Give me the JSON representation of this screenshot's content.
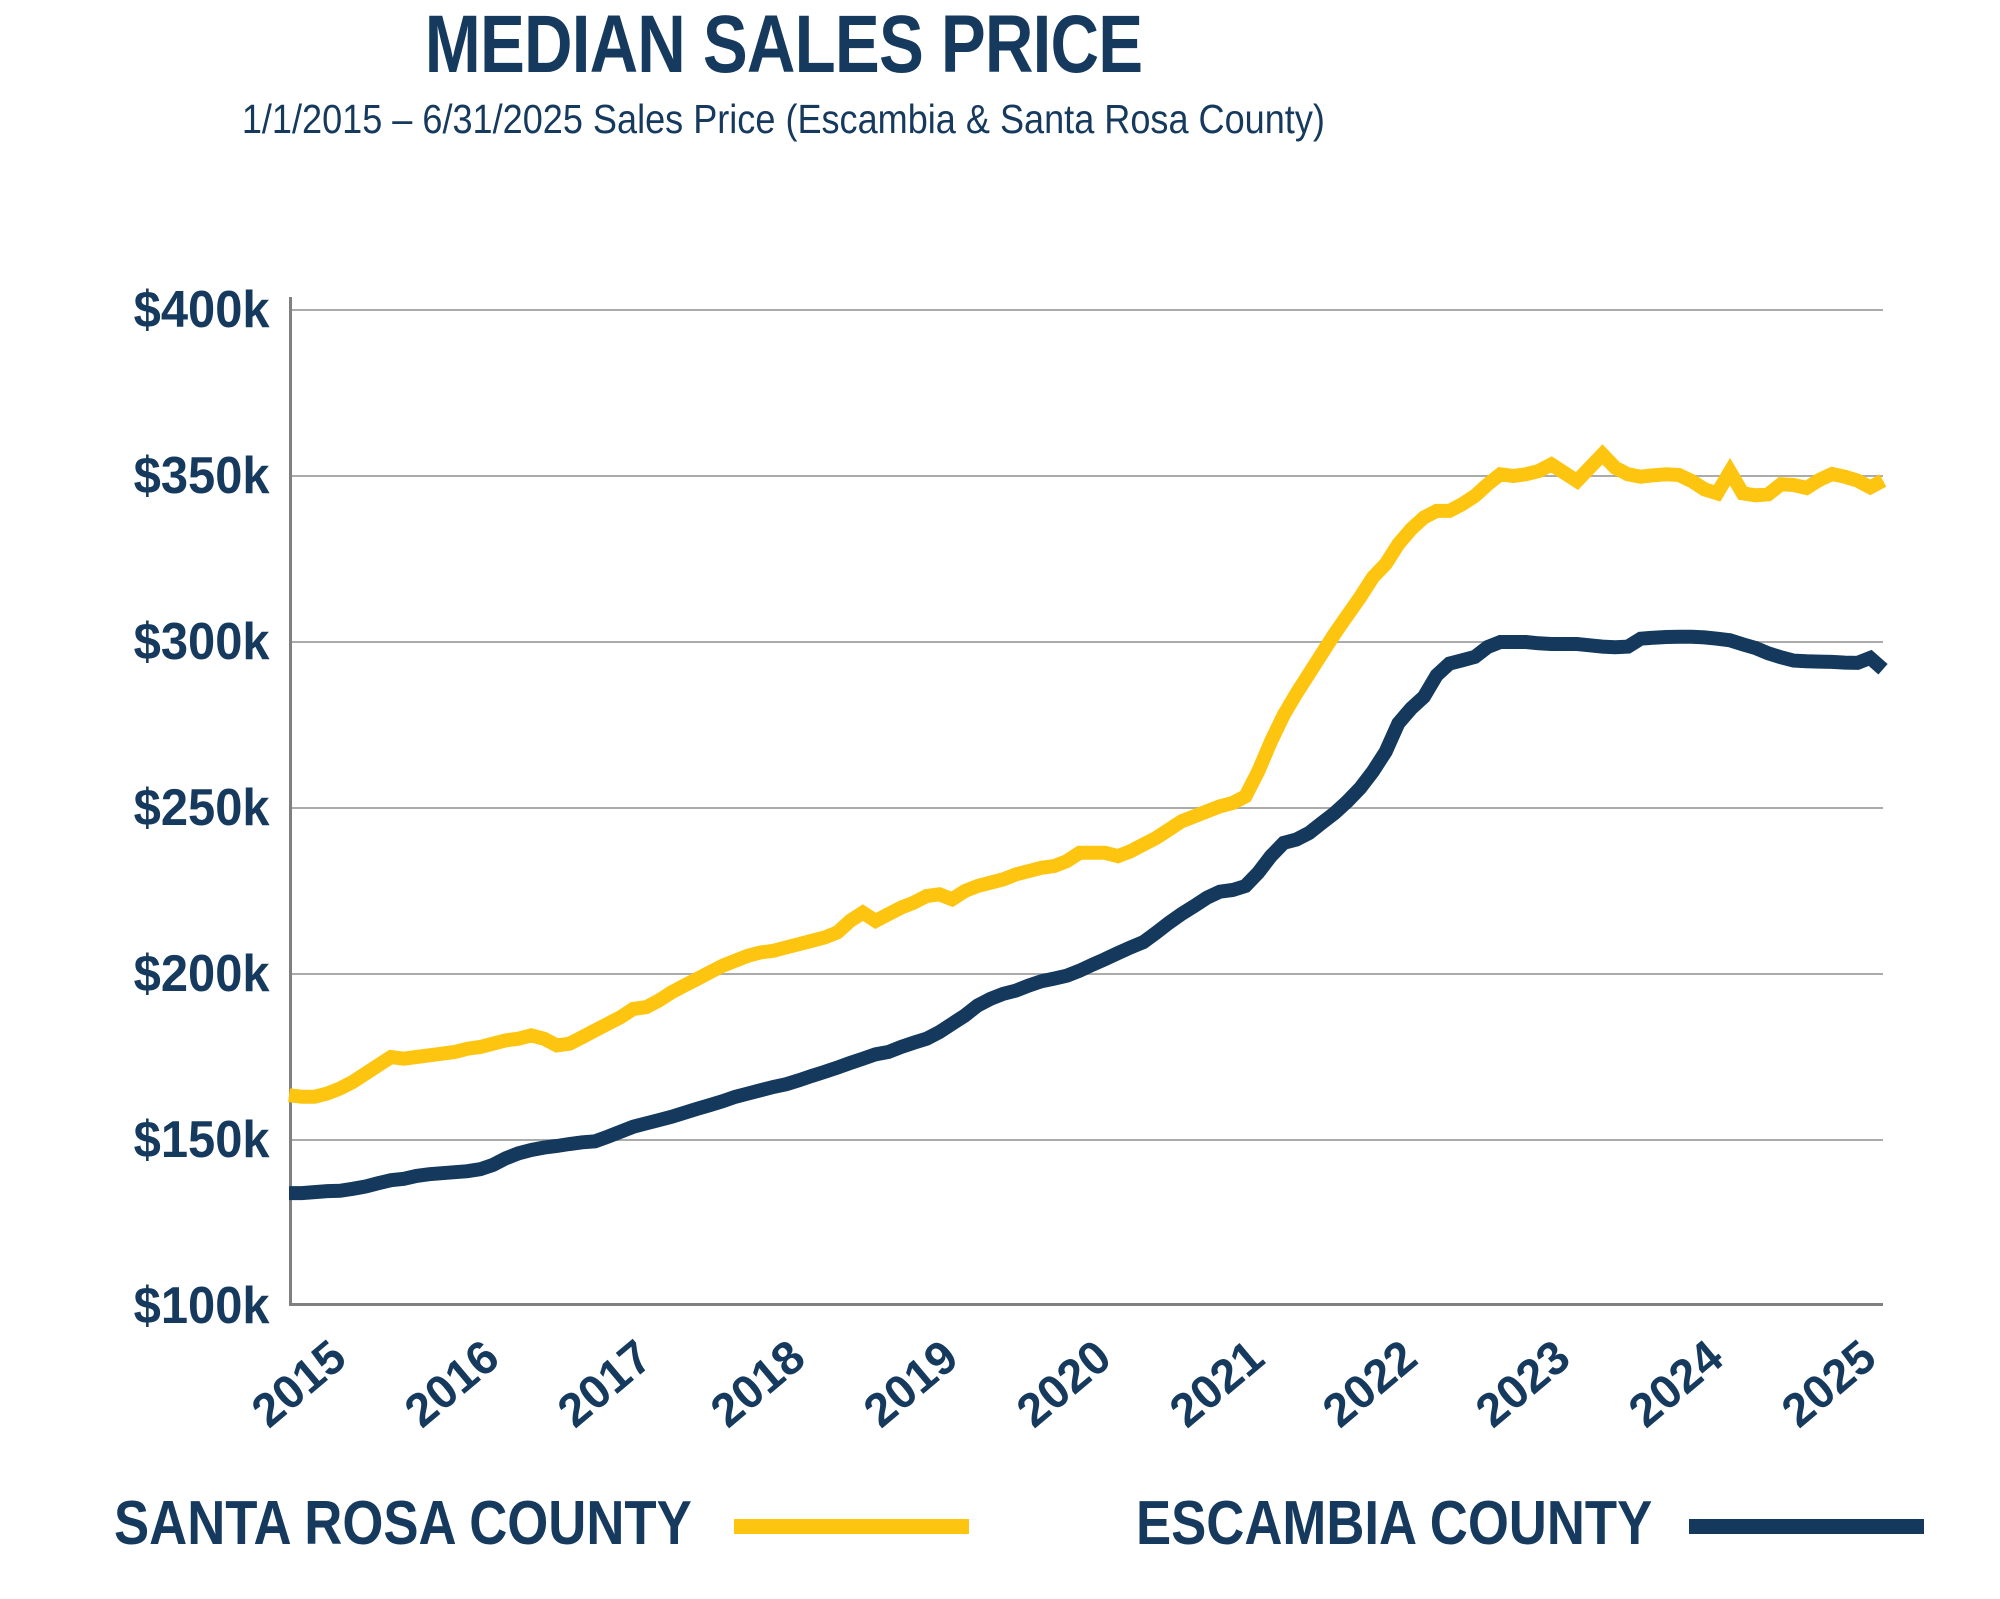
{
  "chart_data": {
    "type": "line",
    "title": "MEDIAN SALES PRICE",
    "subtitle": "1/1/2015 – 6/31/2025  Sales Price (Escambia & Santa Rosa County)",
    "x_interval": "monthly",
    "x_range": {
      "start": "2015-01",
      "end": "2025-06"
    },
    "x_tick_labels": [
      "2015",
      "2016",
      "2017",
      "2018",
      "2019",
      "2020",
      "2021",
      "2022",
      "2023",
      "2024",
      "2025"
    ],
    "y_tick_labels": [
      "$400k",
      "$350k",
      "$300k",
      "$250k",
      "$200k",
      "$150k",
      "$100k"
    ],
    "y_tick_values_k": [
      400,
      350,
      300,
      250,
      200,
      150,
      100
    ],
    "ylim_k": [
      100,
      400
    ],
    "grid": "horizontal",
    "legend_position": "bottom",
    "colors": {
      "text_navy": "#16395E",
      "gridline": "#ABABAB",
      "axis": "#808080"
    },
    "series": [
      {
        "name": "SANTA ROSA COUNTY",
        "color": "#FDC50F",
        "values_k": [
          163.5,
          163,
          163,
          164,
          165.5,
          167.5,
          170,
          172.5,
          175,
          174.5,
          175,
          175.5,
          176,
          176.5,
          177.5,
          178,
          179,
          180,
          180.5,
          181.5,
          180.5,
          178.5,
          179,
          181,
          183,
          185,
          187,
          189.5,
          190,
          192,
          194.5,
          196.5,
          198.5,
          200.5,
          202.5,
          204,
          205.5,
          206.5,
          207,
          208,
          209,
          210,
          211,
          212.5,
          216,
          218.5,
          216,
          218,
          220,
          221.5,
          223.5,
          224,
          222.5,
          225,
          226.5,
          227.5,
          228.5,
          230,
          231,
          232,
          232.5,
          234,
          236.5,
          236.5,
          236.5,
          235.5,
          237,
          239,
          241,
          243.5,
          246,
          247.5,
          249,
          250.5,
          251.5,
          253.5,
          261,
          270,
          278,
          284.5,
          290.5,
          296.5,
          302.5,
          308,
          313.5,
          319.5,
          323.5,
          329.5,
          334,
          337.5,
          339.5,
          339.5,
          341.5,
          344,
          347.5,
          350.5,
          350,
          350.5,
          351.5,
          353.5,
          351,
          348.5,
          352.5,
          356.5,
          352.5,
          350.5,
          349.8,
          350.2,
          350.5,
          350.3,
          348.5,
          346,
          344.8,
          351.3,
          344.8,
          344.2,
          344.5,
          347.5,
          347.3,
          346.4,
          348.8,
          350.6,
          349.8,
          348.6,
          346.6,
          348.6
        ]
      },
      {
        "name": "ESCAMBIA COUNTY",
        "color": "#14395C",
        "values_k": [
          134,
          134,
          134.3,
          134.6,
          134.7,
          135.3,
          136,
          137,
          137.9,
          138.3,
          139.2,
          139.7,
          140,
          140.3,
          140.6,
          141.2,
          142.5,
          144.5,
          146,
          147,
          147.7,
          148.2,
          148.8,
          149.3,
          149.6,
          151,
          152.5,
          154,
          155,
          156,
          157,
          158.2,
          159.4,
          160.5,
          161.7,
          163,
          164,
          165,
          166,
          166.8,
          168,
          169.3,
          170.5,
          171.8,
          173.2,
          174.5,
          175.8,
          176.5,
          178,
          179.3,
          180.5,
          182.5,
          185,
          187.5,
          190.5,
          192.5,
          194,
          195,
          196.5,
          197.8,
          198.6,
          199.5,
          201,
          202.8,
          204.5,
          206.3,
          208,
          209.6,
          212.4,
          215.4,
          218.1,
          220.5,
          223,
          224.8,
          225.3,
          226.5,
          230.5,
          235.5,
          239.5,
          240.5,
          242.5,
          245.5,
          248.5,
          252,
          256,
          261,
          267,
          275.5,
          280,
          283.5,
          290,
          293.5,
          294.5,
          295.5,
          298.5,
          300,
          300,
          300,
          299.6,
          299.4,
          299.4,
          299.4,
          299,
          298.6,
          298.4,
          298.6,
          301,
          301.3,
          301.5,
          301.6,
          301.6,
          301.4,
          301,
          300.5,
          299.3,
          298.2,
          296.6,
          295.4,
          294.4,
          294.2,
          294.1,
          294,
          293.8,
          293.7,
          295.2,
          291.8
        ]
      }
    ]
  }
}
